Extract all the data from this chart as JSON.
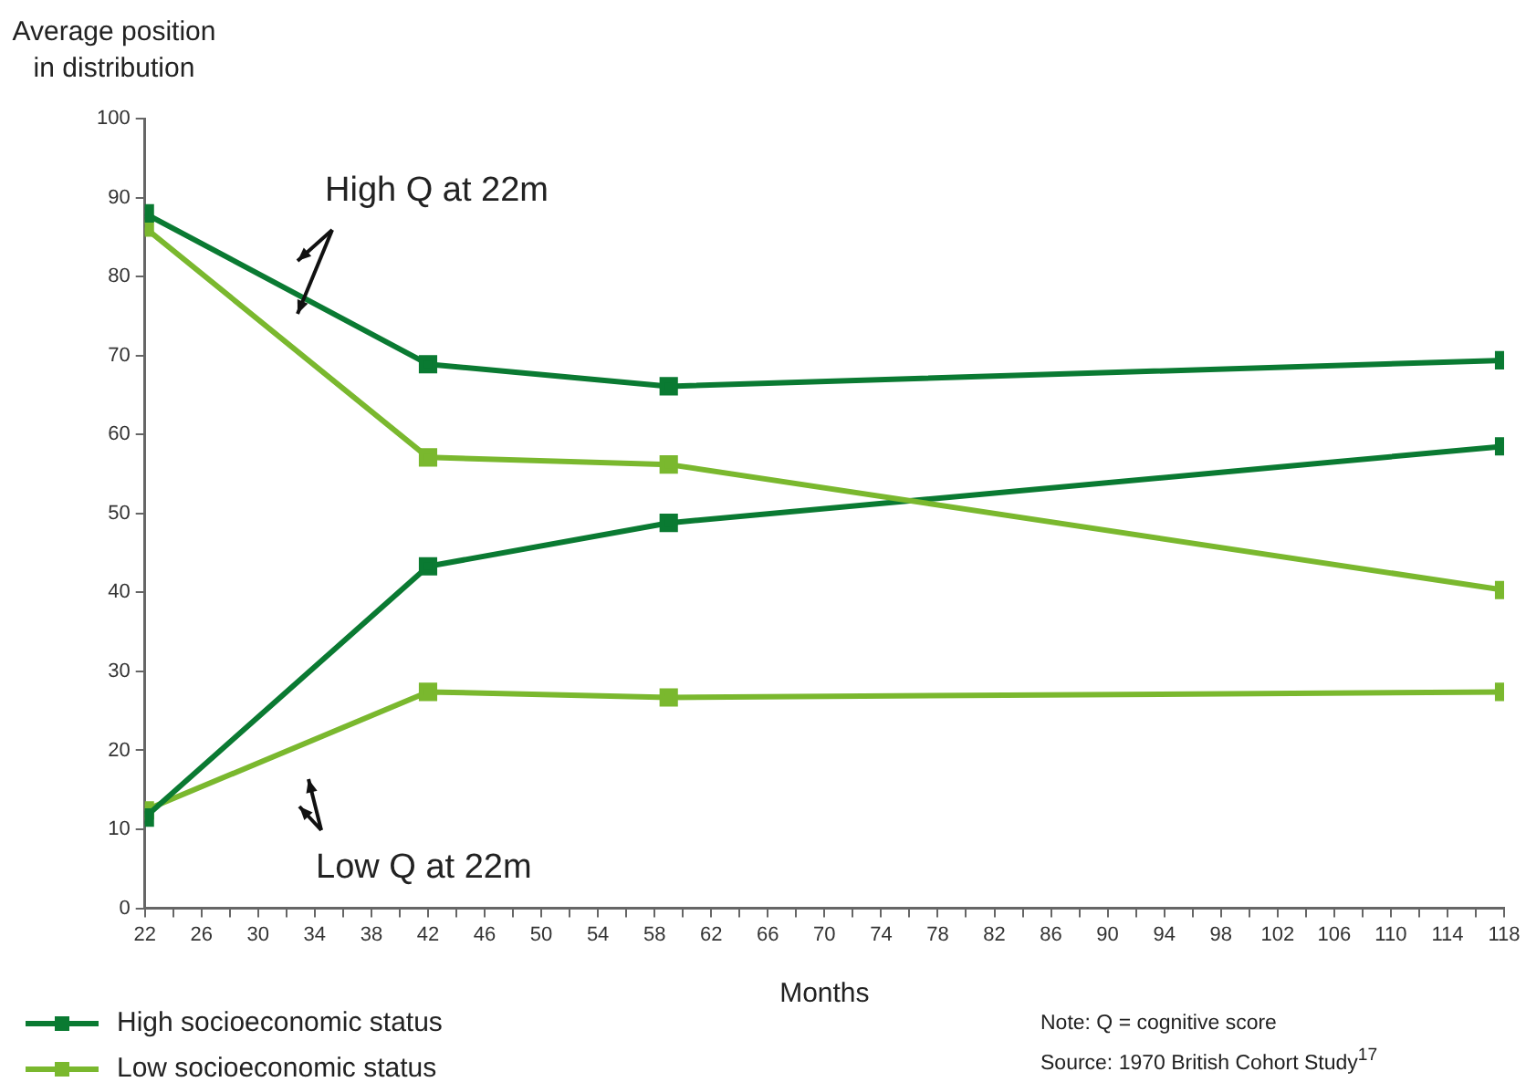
{
  "chart_data": {
    "type": "line",
    "ylabel": "Average position in distribution",
    "xlabel": "Months",
    "xlim": [
      22,
      118
    ],
    "xticks": [
      22,
      {
        "value": 24,
        "label": null
      },
      26,
      {
        "value": 28,
        "label": null
      },
      30,
      {
        "value": 32,
        "label": null
      },
      34,
      {
        "value": 36,
        "label": null
      },
      38,
      {
        "value": 40,
        "label": null
      },
      42,
      {
        "value": 44,
        "label": null
      },
      46,
      {
        "value": 48,
        "label": null
      },
      50,
      {
        "value": 52,
        "label": null
      },
      54,
      {
        "value": 56,
        "label": null
      },
      58,
      {
        "value": 60,
        "label": null
      },
      62,
      {
        "value": 64,
        "label": null
      },
      66,
      {
        "value": 68,
        "label": null
      },
      70,
      {
        "value": 72,
        "label": null
      },
      74,
      {
        "value": 76,
        "label": null
      },
      78,
      {
        "value": 80,
        "label": null
      },
      82,
      {
        "value": 84,
        "label": null
      },
      86,
      {
        "value": 88,
        "label": null
      },
      90,
      {
        "value": 92,
        "label": null
      },
      94,
      {
        "value": 96,
        "label": null
      },
      98,
      {
        "value": 100,
        "label": null
      },
      102,
      {
        "value": 104,
        "label": null
      },
      106,
      {
        "value": 108,
        "label": null
      },
      110,
      {
        "value": 112,
        "label": null
      },
      114,
      {
        "value": 116,
        "label": null
      },
      118
    ],
    "ylim": [
      0,
      100
    ],
    "yticks": [
      0,
      10,
      20,
      30,
      40,
      50,
      60,
      70,
      80,
      90,
      100
    ],
    "x": [
      22,
      42,
      59,
      118
    ],
    "series": [
      {
        "name": "High socioeconomic status",
        "color": "#0a7a32",
        "values": [
          88.0,
          68.9,
          66.1,
          69.4
        ]
      },
      {
        "color": "#7ab82e",
        "values": [
          86.2,
          57.1,
          56.2,
          40.3
        ]
      },
      {
        "color": "#0a7a32",
        "values": [
          11.5,
          43.3,
          48.8,
          58.5
        ]
      },
      {
        "name": "Low socioeconomic status",
        "color": "#7ab82e",
        "values": [
          12.4,
          27.4,
          26.7,
          27.4
        ]
      }
    ],
    "marker": "square",
    "line_style": "solid",
    "grid": false,
    "legend": "bottom left",
    "annotations": [
      "High Q at 22m",
      "Low Q at 22m",
      "Note: Q = cognitive score",
      "Source: 1970 British Cohort Study$^{17}$"
    ]
  }
}
